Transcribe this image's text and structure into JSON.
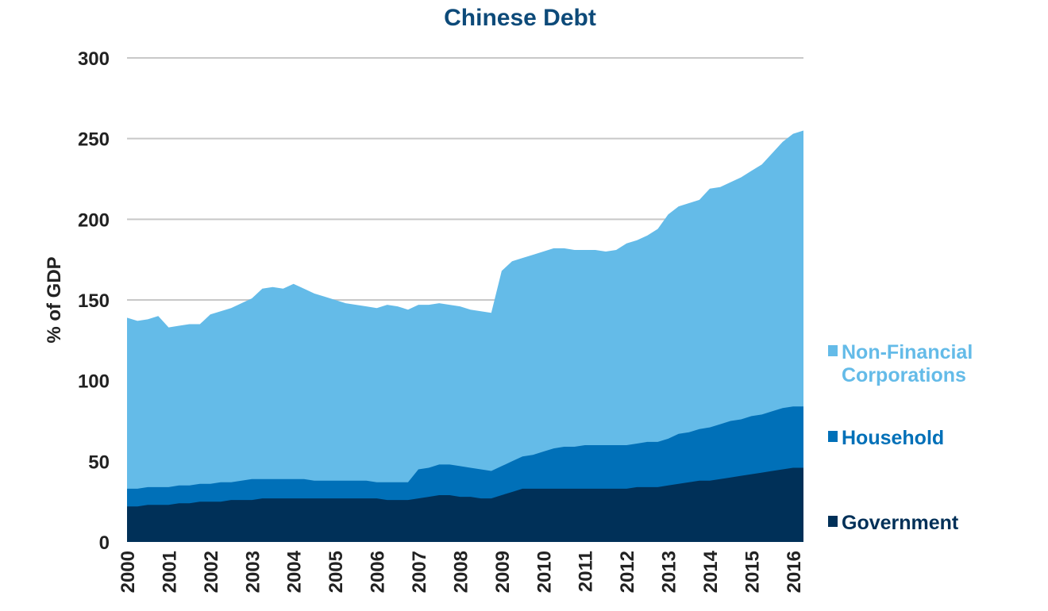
{
  "chart_data": {
    "type": "area",
    "stacked": true,
    "title": "Chinese Debt",
    "ylabel": "% of GDP",
    "xlabel": "",
    "ylim": [
      0,
      300
    ],
    "yticks": [
      "0",
      "50",
      "100",
      "150",
      "200",
      "250",
      "300"
    ],
    "xlim": [
      2000,
      2016.25
    ],
    "xticks": [
      "2000",
      "2001",
      "2002",
      "2003",
      "2004",
      "2005",
      "2006",
      "2007",
      "2008",
      "2009",
      "2010",
      "2011",
      "2012",
      "2013",
      "2014",
      "2015",
      "2016"
    ],
    "grid": true,
    "legend_position": "right",
    "x": [
      2000,
      2000.25,
      2000.5,
      2000.75,
      2001,
      2001.25,
      2001.5,
      2001.75,
      2002,
      2002.25,
      2002.5,
      2002.75,
      2003,
      2003.25,
      2003.5,
      2003.75,
      2004,
      2004.25,
      2004.5,
      2004.75,
      2005,
      2005.25,
      2005.5,
      2005.75,
      2006,
      2006.25,
      2006.5,
      2006.75,
      2007,
      2007.25,
      2007.5,
      2007.75,
      2008,
      2008.25,
      2008.5,
      2008.75,
      2009,
      2009.25,
      2009.5,
      2009.75,
      2010,
      2010.25,
      2010.5,
      2010.75,
      2011,
      2011.25,
      2011.5,
      2011.75,
      2012,
      2012.25,
      2012.5,
      2012.75,
      2013,
      2013.25,
      2013.5,
      2013.75,
      2014,
      2014.25,
      2014.5,
      2014.75,
      2015,
      2015.25,
      2015.5,
      2015.75,
      2016,
      2016.25
    ],
    "series": [
      {
        "name": "Government",
        "color": "#003058",
        "values": [
          22,
          22,
          23,
          23,
          23,
          24,
          24,
          25,
          25,
          25,
          26,
          26,
          26,
          27,
          27,
          27,
          27,
          27,
          27,
          27,
          27,
          27,
          27,
          27,
          27,
          26,
          26,
          26,
          27,
          28,
          29,
          29,
          28,
          28,
          27,
          27,
          29,
          31,
          33,
          33,
          33,
          33,
          33,
          33,
          33,
          33,
          33,
          33,
          33,
          34,
          34,
          34,
          35,
          36,
          37,
          38,
          38,
          39,
          40,
          41,
          42,
          43,
          44,
          45,
          46,
          46
        ]
      },
      {
        "name": "Household",
        "color": "#0070b8",
        "values": [
          11,
          11,
          11,
          11,
          11,
          11,
          11,
          11,
          11,
          12,
          11,
          12,
          13,
          12,
          12,
          12,
          12,
          12,
          11,
          11,
          11,
          11,
          11,
          11,
          10,
          11,
          11,
          11,
          18,
          18,
          19,
          19,
          19,
          18,
          18,
          17,
          18,
          19,
          20,
          21,
          23,
          25,
          26,
          26,
          27,
          27,
          27,
          27,
          27,
          27,
          28,
          28,
          29,
          31,
          31,
          32,
          33,
          34,
          35,
          35,
          36,
          36,
          37,
          38,
          38,
          38
        ]
      },
      {
        "name": "Non-Financial Corporations",
        "color": "#64bbe8",
        "values": [
          106,
          104,
          104,
          106,
          99,
          99,
          100,
          99,
          105,
          106,
          108,
          110,
          112,
          118,
          119,
          118,
          121,
          118,
          116,
          114,
          112,
          110,
          109,
          108,
          108,
          110,
          109,
          107,
          102,
          101,
          100,
          99,
          99,
          98,
          98,
          98,
          121,
          124,
          123,
          124,
          124,
          124,
          123,
          122,
          121,
          121,
          120,
          121,
          125,
          126,
          128,
          132,
          139,
          141,
          142,
          142,
          148,
          147,
          148,
          150,
          152,
          155,
          160,
          165,
          169,
          171
        ]
      }
    ]
  }
}
